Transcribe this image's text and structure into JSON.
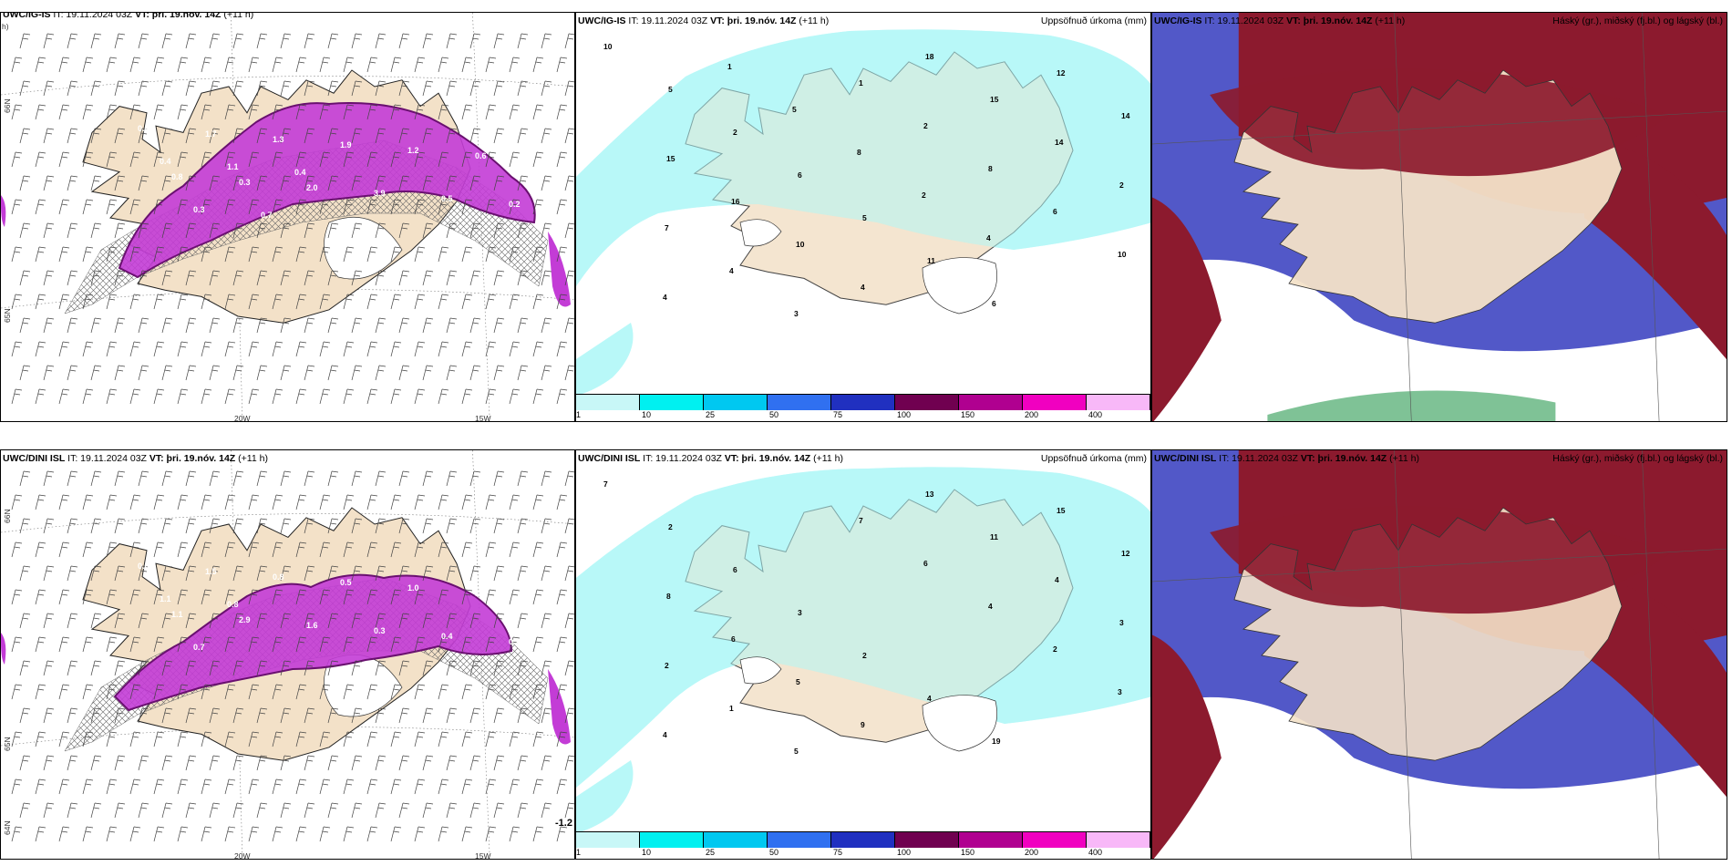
{
  "panels": {
    "p1": {
      "model": "UWC/IG-IS",
      "it": "IT: 19.11.2024 03Z",
      "vt": "VT: þri. 19.nóv. 14Z",
      "lead": "(+11 h)",
      "lead_wrap": "h)"
    },
    "p2": {
      "model": "UWC/IG-IS",
      "it": "IT: 19.11.2024 03Z",
      "vt": "VT: þri. 19.nóv. 14Z",
      "lead": "(+11 h)",
      "field": "Uppsöfnuð úrkoma (mm)"
    },
    "p3": {
      "model": "UWC/IG-IS",
      "it": "IT: 19.11.2024 03Z",
      "vt": "VT: þri. 19.nóv. 14Z",
      "lead": "(+11 h)",
      "field": "Háský (gr.), miðský (fj.bl.) og lágský (bl.)"
    },
    "p4": {
      "model": "UWC/DINI ISL",
      "it": "IT: 19.11.2024 03Z",
      "vt": "VT: þri. 19.nóv. 14Z",
      "lead": "(+11 h)"
    },
    "p5": {
      "model": "UWC/DINI ISL",
      "it": "IT: 19.11.2024 03Z",
      "vt": "VT: þri. 19.nóv. 14Z",
      "lead": "(+11 h)",
      "field": "Uppsöfnuð úrkoma (mm)"
    },
    "p6": {
      "model": "UWC/DINI ISL",
      "it": "IT: 19.11.2024 03Z",
      "vt": "VT: þri. 19.nóv. 14Z",
      "lead": "(+11 h)",
      "field": "Háský (gr.), miðský (fj.bl.) og lágský (bl.)"
    }
  },
  "axis_labels": {
    "lon_20w": "20W",
    "lon_15w": "15W",
    "lat_66n": "66N",
    "lat_65n": "65N",
    "lat_64n": "64N"
  },
  "colorbar": {
    "labels": [
      "1",
      "10",
      "25",
      "50",
      "75",
      "100",
      "150",
      "200",
      "400"
    ],
    "colors": [
      "#c8f7f7",
      "#00f0f0",
      "#00c8f0",
      "#3070f0",
      "#2030c0",
      "#700050",
      "#b00090",
      "#f000c0",
      "#f8b8f8"
    ]
  },
  "p4_extra_value": "-1.2",
  "p1_values": [
    "0.4",
    "0.8",
    "1.7",
    "0.3",
    "1.3",
    "2.0",
    "1.9",
    "3.9",
    "1.2",
    "0.5",
    "0.6",
    "0.2",
    "0.4",
    "0.3",
    "1.1",
    "0.7",
    "0.4"
  ],
  "p2_values": [
    "10",
    "5",
    "2",
    "6",
    "5",
    "11",
    "6",
    "12",
    "14",
    "15",
    "16",
    "10",
    "4",
    "18",
    "15",
    "14",
    "2",
    "7",
    "4",
    "3",
    "1",
    "2",
    "8",
    "6",
    "10",
    "4",
    "1",
    "5",
    "8",
    "2",
    "4"
  ],
  "p4_values": [
    "0.6",
    "1.1",
    "1.5",
    "2.9",
    "0.8",
    "1.6",
    "0.5",
    "0.3",
    "1.0",
    "0.4",
    "1.3",
    "0.2",
    "1.1",
    "0.7",
    "0.8"
  ],
  "p5_values": [
    "7",
    "2",
    "6",
    "3",
    "2",
    "4",
    "19",
    "15",
    "12",
    "8",
    "6",
    "5",
    "9",
    "13",
    "11",
    "4",
    "3",
    "2",
    "1",
    "5",
    "7",
    "6",
    "4",
    "2",
    "3",
    "4"
  ],
  "colors": {
    "land": "#f3e1c8",
    "ocean_white": "#ffffff",
    "precip_light": "#b8f8f8",
    "cloud_high": "#8c1a2e",
    "cloud_mid": "#5258c8",
    "cloud_low": "#3a8ae8",
    "green": "#2a9a50"
  }
}
